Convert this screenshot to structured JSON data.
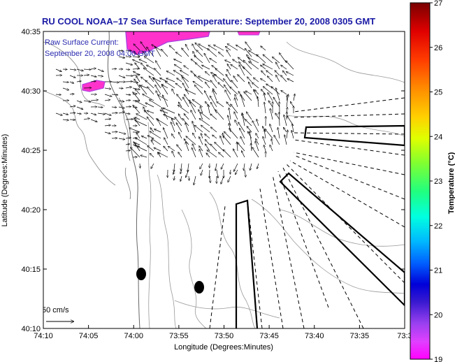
{
  "title": "RU COOL  NOAA–17  Sea Surface Temperature:  September 20, 2008 0305 GMT",
  "legend": {
    "line1": "Raw Surface Current:",
    "line2": "September 20, 2008 04:00 GMT"
  },
  "scale_label": "50 cm/s",
  "axes": {
    "xlabel": "Longitude (Degrees:Minutes)",
    "ylabel": "Latitude (Degrees:Minutes)",
    "xticks": [
      "74:10",
      "74:05",
      "74:00",
      "73:55",
      "73:50",
      "73:45",
      "73:40",
      "73:35",
      "73:3"
    ],
    "yticks": [
      "40:35",
      "40:30",
      "40:25",
      "40:20",
      "40:15",
      "40:10"
    ]
  },
  "colorbar": {
    "label": "Temperature (°C)",
    "ticks": [
      "27",
      "26",
      "25",
      "24",
      "23",
      "22",
      "21",
      "20",
      "19"
    ]
  },
  "colors": {
    "title": "#1a1aa6",
    "legend_text": "#2b2bb0",
    "sst_patch": "#ff33cc",
    "sst_patch_edge": "#b040e0"
  }
}
